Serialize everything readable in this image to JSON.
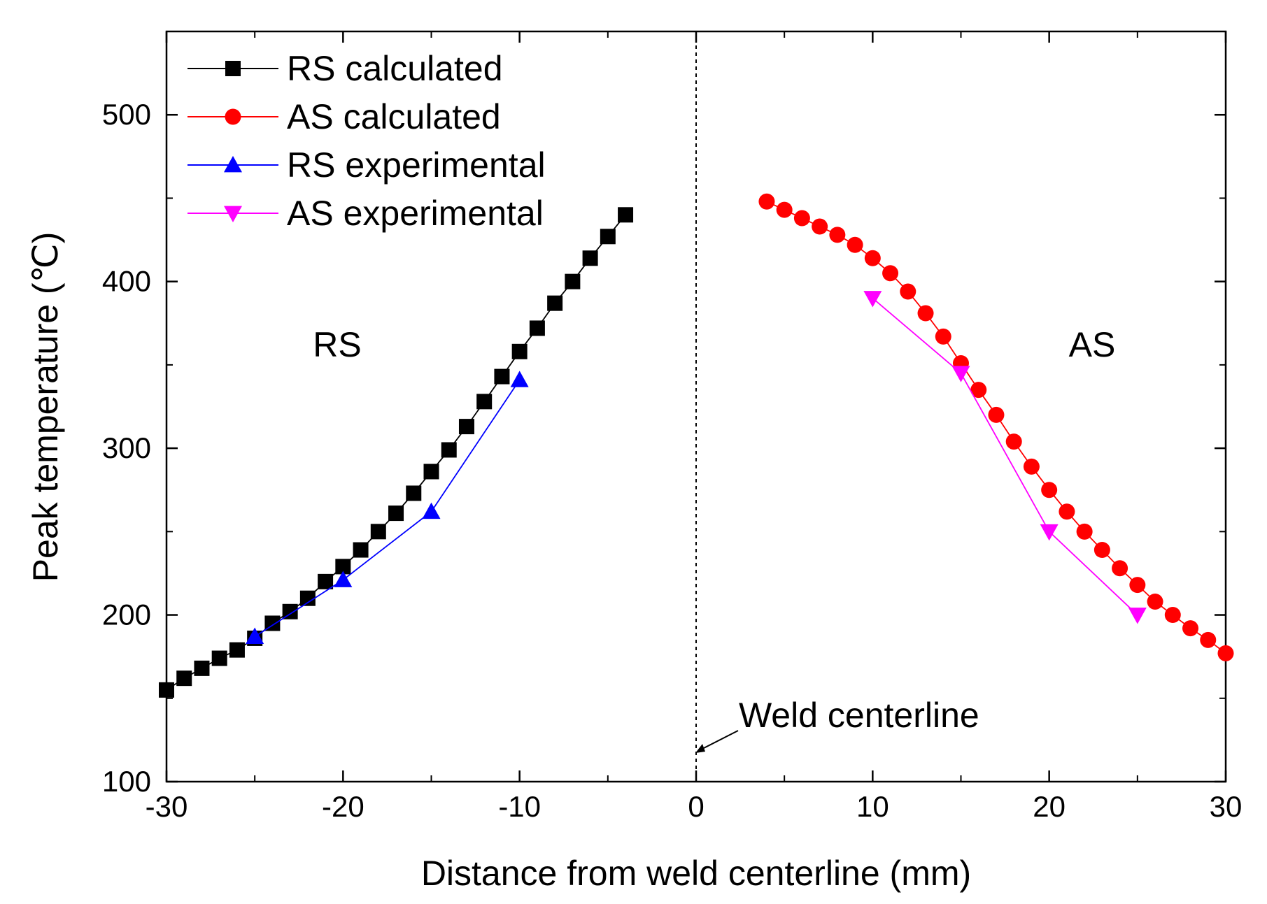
{
  "chart_data": {
    "type": "line",
    "title": "",
    "xlabel": "Distance from weld centerline (mm)",
    "ylabel": "Peak temperature (℃)",
    "xlim": [
      -30,
      30
    ],
    "ylim": [
      100,
      550
    ],
    "xticks": [
      -30,
      -20,
      -10,
      0,
      10,
      20,
      30
    ],
    "yticks": [
      100,
      200,
      300,
      400,
      500
    ],
    "grid": false,
    "legend_position": "top-left",
    "series": [
      {
        "name": "RS calculated",
        "color": "#000000",
        "marker": "square",
        "x": [
          -30,
          -29,
          -28,
          -27,
          -26,
          -25,
          -24,
          -23,
          -22,
          -21,
          -20,
          -19,
          -18,
          -17,
          -16,
          -15,
          -14,
          -13,
          -12,
          -11,
          -10,
          -9,
          -8,
          -7,
          -6,
          -5,
          -4
        ],
        "y": [
          155,
          162,
          168,
          174,
          179,
          186,
          195,
          202,
          210,
          220,
          229,
          239,
          250,
          261,
          273,
          286,
          299,
          313,
          328,
          343,
          358,
          372,
          387,
          400,
          414,
          427,
          440
        ]
      },
      {
        "name": "AS calculated",
        "color": "#ff0000",
        "marker": "circle",
        "x": [
          4,
          5,
          6,
          7,
          8,
          9,
          10,
          11,
          12,
          13,
          14,
          15,
          16,
          17,
          18,
          19,
          20,
          21,
          22,
          23,
          24,
          25,
          26,
          27,
          28,
          29,
          30
        ],
        "y": [
          448,
          443,
          438,
          433,
          428,
          422,
          414,
          405,
          394,
          381,
          367,
          351,
          335,
          320,
          304,
          289,
          275,
          262,
          250,
          239,
          228,
          218,
          208,
          200,
          192,
          185,
          177
        ]
      },
      {
        "name": "RS experimental",
        "color": "#0000ff",
        "marker": "triangle-up",
        "x": [
          -25,
          -20,
          -15,
          -10
        ],
        "y": [
          187,
          221,
          262,
          341
        ]
      },
      {
        "name": "AS experimental",
        "color": "#ff00ff",
        "marker": "triangle-down",
        "x": [
          10,
          15,
          20,
          25
        ],
        "y": [
          390,
          345,
          250,
          200
        ]
      }
    ],
    "annotations": {
      "rs_region": "RS",
      "as_region": "AS",
      "centerline": "Weld centerline"
    }
  }
}
